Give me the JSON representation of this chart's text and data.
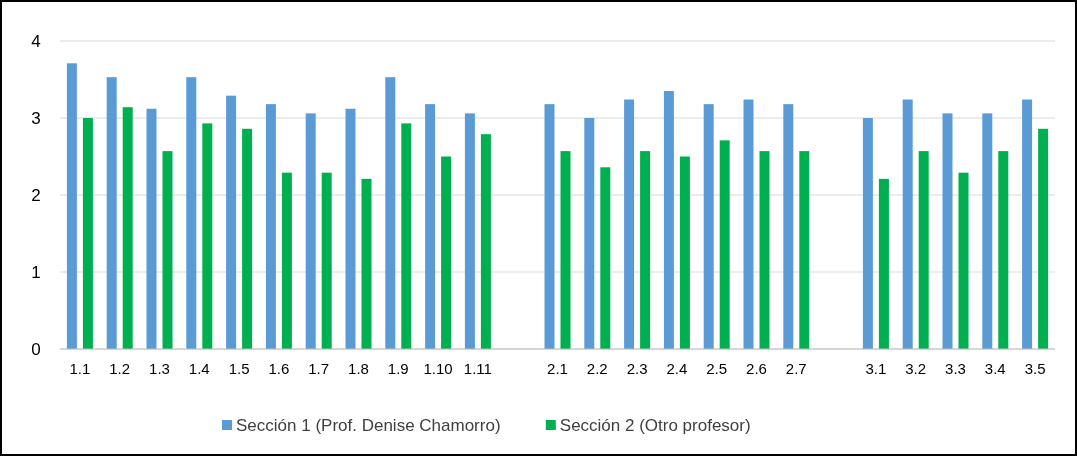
{
  "chart_data": {
    "type": "bar",
    "categories": [
      "1.1",
      "1.2",
      "1.3",
      "1.4",
      "1.5",
      "1.6",
      "1.7",
      "1.8",
      "1.9",
      "1.10",
      "1.11",
      null,
      "2.1",
      "2.2",
      "2.3",
      "2.4",
      "2.5",
      "2.6",
      "2.7",
      null,
      "3.1",
      "3.2",
      "3.3",
      "3.4",
      "3.5"
    ],
    "series": [
      {
        "name": "Sección 1 (Prof. Denise Chamorro)",
        "color": "#5b9bd5",
        "values": [
          3.71,
          3.53,
          3.12,
          3.53,
          3.29,
          3.18,
          3.06,
          3.12,
          3.53,
          3.18,
          3.06,
          null,
          3.18,
          3.0,
          3.24,
          3.35,
          3.18,
          3.24,
          3.18,
          null,
          3.0,
          3.24,
          3.06,
          3.06,
          3.24
        ]
      },
      {
        "name": "Sección 2 (Otro profesor)",
        "color": "#00b050",
        "values": [
          3.0,
          3.14,
          2.57,
          2.93,
          2.86,
          2.29,
          2.29,
          2.21,
          2.93,
          2.5,
          2.79,
          null,
          2.57,
          2.36,
          2.57,
          2.5,
          2.71,
          2.57,
          2.57,
          null,
          2.21,
          2.57,
          2.29,
          2.57,
          2.86
        ]
      }
    ],
    "ylim": [
      0,
      4
    ],
    "yticks": [
      0,
      1,
      2,
      3,
      4
    ],
    "grid": "y",
    "legend": "bottom"
  }
}
